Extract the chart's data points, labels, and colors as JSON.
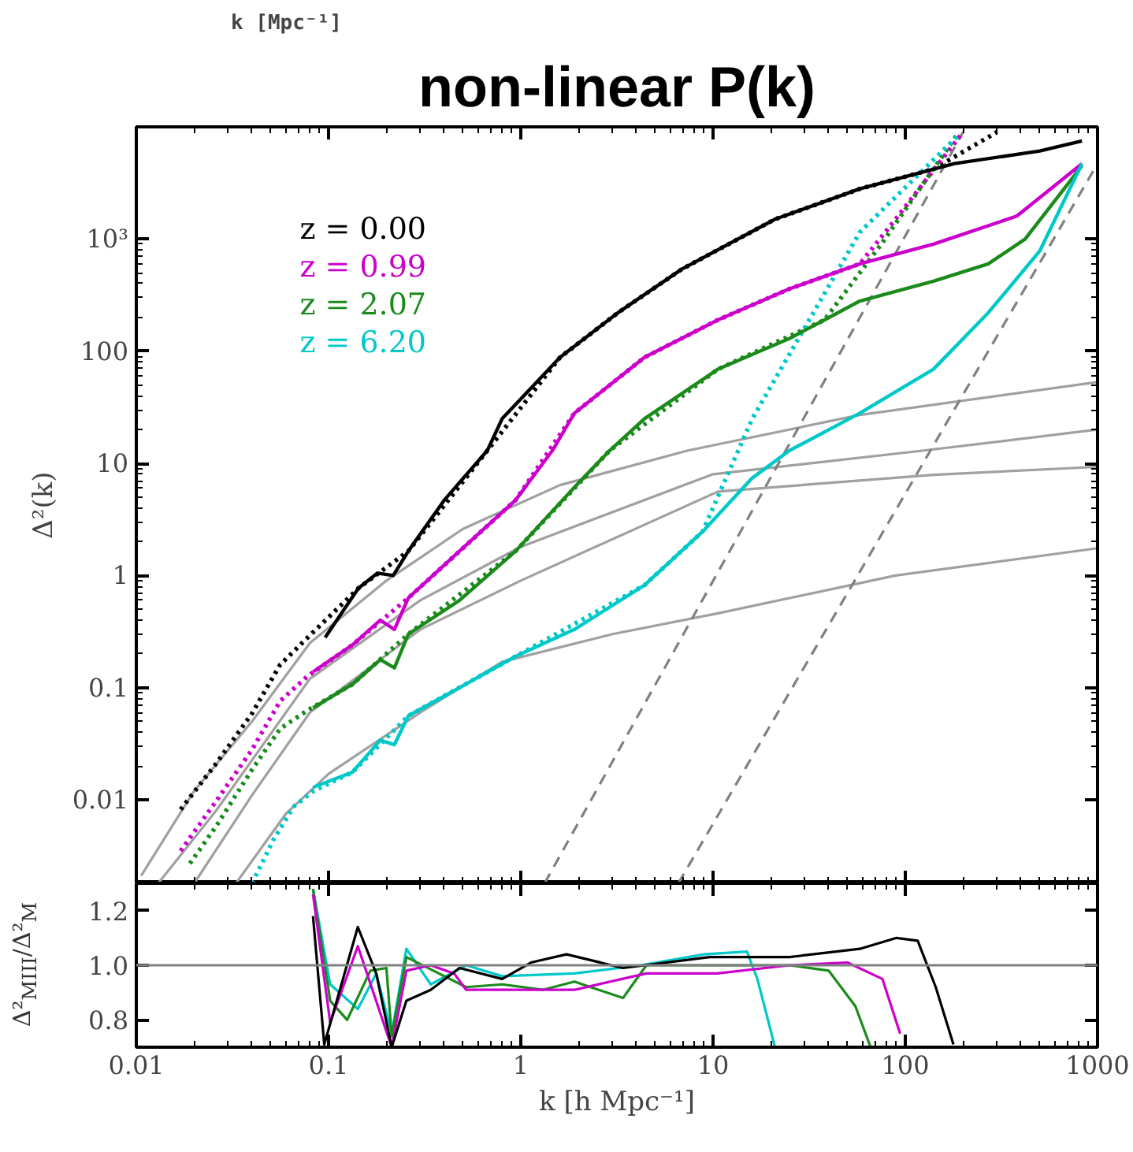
{
  "chart_data": [
    {
      "type": "line",
      "title": "non-linear P(k)",
      "ylabel": "Δ²(k)",
      "annotations": [
        "k [Mpc⁻¹]"
      ],
      "log": "xy",
      "legend": "top left",
      "tick_labels": "y",
      "grid": false,
      "xlim": [
        0.01,
        1000
      ],
      "ylim": [
        0.0018,
        10000
      ],
      "xticks": [
        0.01,
        0.1,
        1,
        10,
        100,
        1000
      ],
      "yticks": [
        0.01,
        0.1,
        1,
        10,
        100,
        {
          "value": 1000,
          "label": "10³"
        }
      ],
      "series": [
        {
          "color": "#a0a0a0",
          "line_style": "solid",
          "x": [
            0.0106,
            0.02,
            0.04,
            0.08,
            0.2,
            0.5,
            1.6,
            7.4,
            58,
            1000
          ],
          "values": [
            0.0021,
            0.012,
            0.05,
            0.25,
            0.9,
            2.6,
            6.4,
            13,
            27,
            53
          ]
        },
        {
          "color": "#a0a0a0",
          "line_style": "solid",
          "x": [
            0.013,
            0.026,
            0.08,
            0.3,
            1,
            10,
            125,
            1000
          ],
          "values": [
            0.0018,
            0.008,
            0.12,
            0.6,
            1.8,
            8,
            13,
            20
          ]
        },
        {
          "color": "#a0a0a0",
          "line_style": "solid",
          "x": [
            0.02,
            0.04,
            0.08,
            0.3,
            1,
            10.6,
            140,
            1000
          ],
          "values": [
            0.0018,
            0.011,
            0.06,
            0.33,
            0.9,
            5.6,
            7.9,
            9.3
          ]
        },
        {
          "color": "#a0a0a0",
          "line_style": "solid",
          "x": [
            0.033,
            0.06,
            0.1,
            0.3,
            0.8,
            3,
            10.6,
            89,
            1000
          ],
          "values": [
            0.0018,
            0.0075,
            0.017,
            0.06,
            0.17,
            0.3,
            0.46,
            1.0,
            1.75
          ]
        },
        {
          "color": "#808080",
          "line_style": "dashed",
          "x": [
            1.33,
            200
          ],
          "values": [
            0.0018,
            9000
          ]
        },
        {
          "color": "#808080",
          "line_style": "dashed",
          "x": [
            6.6,
            1000
          ],
          "values": [
            0.0018,
            4700
          ]
        },
        {
          "color": "#000000",
          "line_style": "dotted",
          "x": [
            0.017,
            0.026,
            0.04,
            0.056,
            0.078,
            0.143,
            0.26,
            0.67,
            1.6,
            3.2,
            6.9,
            21,
            58,
            140,
            300
          ],
          "values": [
            0.0082,
            0.021,
            0.059,
            0.16,
            0.28,
            0.77,
            1.65,
            13,
            88,
            220,
            540,
            1500,
            2800,
            4200,
            9000
          ]
        },
        {
          "color": "#cc00cc",
          "line_style": "dotted",
          "x": [
            0.017,
            0.026,
            0.04,
            0.056,
            0.078,
            0.133,
            0.26,
            0.94,
            1.9,
            4.4,
            10.6,
            25,
            58,
            89,
            200
          ],
          "values": [
            0.0035,
            0.0097,
            0.028,
            0.076,
            0.127,
            0.24,
            0.63,
            4.7,
            28,
            88,
            190,
            360,
            600,
            1500,
            9000
          ]
        },
        {
          "color": "#1a8a1a",
          "line_style": "dotted",
          "x": [
            0.019,
            0.026,
            0.04,
            0.056,
            0.078,
            0.133,
            0.26,
            0.94,
            2.9,
            10.6,
            38,
            75,
            140,
            190
          ],
          "values": [
            0.0027,
            0.0058,
            0.0186,
            0.043,
            0.063,
            0.107,
            0.3,
            1.65,
            13,
            69,
            190,
            900,
            4200,
            9000
          ]
        },
        {
          "color": "#00c8c8",
          "line_style": "dotted",
          "x": [
            0.04,
            0.052,
            0.066,
            0.083,
            0.133,
            0.26,
            0.94,
            4.4,
            8.8,
            16,
            58,
            190
          ],
          "values": [
            0.0018,
            0.0045,
            0.0087,
            0.0119,
            0.0176,
            0.056,
            0.19,
            0.82,
            2.45,
            25,
            1150,
            8500
          ]
        },
        {
          "name": "z = 0.00",
          "color": "#000000",
          "line_style": "solid",
          "x": [
            0.096,
            0.143,
            0.18,
            0.217,
            0.26,
            0.4,
            0.67,
            0.8,
            1.6,
            3.2,
            6.9,
            21,
            58,
            180,
            500,
            830
          ],
          "values": [
            0.28,
            0.77,
            1.05,
            1.0,
            1.65,
            4.7,
            13,
            25,
            88,
            220,
            540,
            1500,
            2800,
            4700,
            6100,
            7500
          ]
        },
        {
          "name": "z = 0.99",
          "color": "#cc00cc",
          "line_style": "solid",
          "x": [
            0.083,
            0.133,
            0.186,
            0.22,
            0.26,
            0.48,
            0.94,
            1.46,
            1.9,
            4.4,
            10.6,
            25,
            58,
            140,
            380,
            830
          ],
          "values": [
            0.138,
            0.24,
            0.4,
            0.33,
            0.63,
            1.65,
            4.7,
            13,
            28,
            88,
            190,
            360,
            600,
            900,
            1600,
            4700
          ]
        },
        {
          "name": "z = 2.07",
          "color": "#1a8a1a",
          "line_style": "solid",
          "x": [
            0.083,
            0.133,
            0.186,
            0.22,
            0.26,
            0.48,
            0.94,
            1.9,
            2.9,
            4.4,
            10.6,
            25,
            38,
            58,
            140,
            270,
            420,
            830
          ],
          "values": [
            0.066,
            0.107,
            0.178,
            0.15,
            0.3,
            0.6,
            1.65,
            6.1,
            13,
            25,
            69,
            130,
            190,
            280,
            420,
            600,
            1000,
            4500
          ]
        },
        {
          "name": "z = 6.20",
          "color": "#00c8c8",
          "line_style": "solid",
          "x": [
            0.083,
            0.133,
            0.186,
            0.22,
            0.26,
            0.48,
            0.94,
            1.9,
            4.4,
            8.8,
            16,
            25,
            58,
            140,
            270,
            500,
            830
          ],
          "values": [
            0.0129,
            0.0176,
            0.034,
            0.031,
            0.056,
            0.1,
            0.19,
            0.33,
            0.82,
            2.45,
            7.4,
            13,
            28,
            69,
            220,
            780,
            4700
          ]
        }
      ]
    },
    {
      "type": "line",
      "xlabel": "k [h Mpc⁻¹]",
      "ylabel": "Δ²$_{MIII}$/Δ²$_{M}$",
      "log": "x",
      "grid": false,
      "xlim": [
        0.01,
        1000
      ],
      "ylim": [
        0.7,
        1.3
      ],
      "xticks": [
        0.01,
        0.1,
        1,
        10,
        100,
        1000
      ],
      "yticks": [
        {
          "value": 0.8,
          "label": "0.8"
        },
        {
          "value": 1.0,
          "label": "1.0"
        },
        {
          "value": 1.2,
          "label": "1.2"
        }
      ],
      "ref_lines": [
        {
          "axis": "y",
          "value": 1.0,
          "color": "#808080"
        }
      ],
      "series": [
        {
          "color": "#00c8c8",
          "line_style": "solid",
          "x": [
            0.083,
            0.102,
            0.142,
            0.177,
            0.213,
            0.254,
            0.34,
            0.52,
            0.8,
            1.9,
            4.2,
            9,
            15,
            17,
            21
          ],
          "values": [
            1.28,
            0.93,
            0.84,
            0.97,
            0.75,
            1.06,
            0.93,
            1.0,
            0.96,
            0.97,
            1.0,
            1.04,
            1.05,
            0.95,
            0.7
          ]
        },
        {
          "color": "#1a8a1a",
          "line_style": "solid",
          "x": [
            0.083,
            0.102,
            0.125,
            0.165,
            0.2,
            0.213,
            0.254,
            0.4,
            0.52,
            0.8,
            1.3,
            1.9,
            3.4,
            4.5,
            10,
            25,
            40,
            55,
            66
          ],
          "values": [
            1.28,
            0.87,
            0.8,
            0.98,
            0.99,
            0.74,
            1.03,
            0.96,
            0.92,
            0.93,
            0.91,
            0.94,
            0.88,
            1.0,
            1.0,
            1.0,
            0.98,
            0.85,
            0.7
          ]
        },
        {
          "color": "#cc00cc",
          "line_style": "solid",
          "x": [
            0.083,
            0.102,
            0.142,
            0.213,
            0.254,
            0.34,
            0.45,
            0.52,
            0.8,
            1.9,
            4.5,
            10.5,
            25,
            50,
            76,
            94
          ],
          "values": [
            1.26,
            0.79,
            1.07,
            0.7,
            0.98,
            1.0,
            0.97,
            0.91,
            0.91,
            0.91,
            0.97,
            0.97,
            1.0,
            1.01,
            0.95,
            0.75
          ]
        },
        {
          "color": "#000000",
          "line_style": "solid",
          "x": [
            0.083,
            0.095,
            0.142,
            0.177,
            0.213,
            0.254,
            0.34,
            0.48,
            0.8,
            1.13,
            1.73,
            3.4,
            9.6,
            25,
            58,
            90,
            116,
            144,
            178
          ],
          "values": [
            1.18,
            0.71,
            1.14,
            0.97,
            0.7,
            0.87,
            0.91,
            0.99,
            0.95,
            1.01,
            1.04,
            0.99,
            1.03,
            1.03,
            1.06,
            1.1,
            1.09,
            0.92,
            0.71
          ]
        }
      ]
    }
  ]
}
